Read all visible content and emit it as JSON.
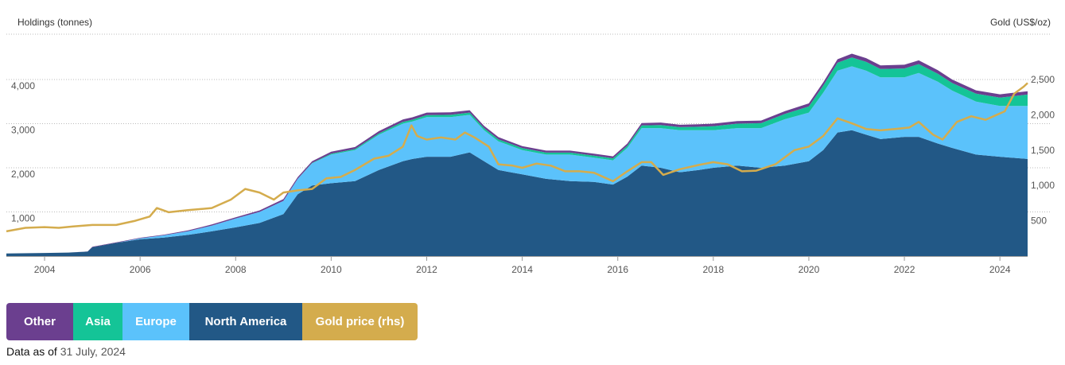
{
  "header": {
    "left_axis_title": "Holdings (tonnes)",
    "right_axis_title": "Gold (US$/oz)"
  },
  "legend": [
    {
      "label": "Other",
      "color": "#6b3f8f"
    },
    {
      "label": "Asia",
      "color": "#14c497"
    },
    {
      "label": "Europe",
      "color": "#5bc2fb"
    },
    {
      "label": "North America",
      "color": "#225886"
    },
    {
      "label": "Gold price (rhs)",
      "color": "#d4ac4d"
    }
  ],
  "footer": {
    "prefix": "Data as of",
    "date": "31 July, 2024"
  },
  "chart_data": {
    "type": "area",
    "x_ticks": [
      "2004",
      "2006",
      "2008",
      "2010",
      "2012",
      "2014",
      "2016",
      "2018",
      "2020",
      "2022",
      "2024"
    ],
    "y_left_ticks": [
      "1,000",
      "2,000",
      "3,000",
      "4,000"
    ],
    "y_right_ticks": [
      "500",
      "1,000",
      "1,500",
      "2,000",
      "2,500"
    ],
    "xlim": [
      2003.2,
      2024.58
    ],
    "ylim_left": [
      0,
      4000
    ],
    "ylim_right": [
      0,
      2500
    ],
    "x": [
      2003.2,
      2004.0,
      2004.5,
      2004.9,
      2005.0,
      2005.5,
      2006.0,
      2006.5,
      2007.0,
      2007.5,
      2008.0,
      2008.5,
      2009.0,
      2009.3,
      2009.6,
      2010.0,
      2010.5,
      2011.0,
      2011.5,
      2011.7,
      2012.0,
      2012.5,
      2012.9,
      2013.2,
      2013.5,
      2014.0,
      2014.5,
      2015.0,
      2015.5,
      2015.9,
      2016.2,
      2016.5,
      2016.9,
      2017.3,
      2017.7,
      2018.0,
      2018.5,
      2019.0,
      2019.5,
      2020.0,
      2020.3,
      2020.6,
      2020.9,
      2021.2,
      2021.5,
      2022.0,
      2022.3,
      2022.7,
      2023.0,
      2023.5,
      2024.0,
      2024.58
    ],
    "series": [
      {
        "name": "North America",
        "color": "#225886",
        "values": [
          60,
          70,
          80,
          100,
          200,
          300,
          380,
          420,
          480,
          560,
          650,
          750,
          950,
          1400,
          1600,
          1650,
          1700,
          1950,
          2150,
          2200,
          2250,
          2250,
          2350,
          2150,
          1950,
          1850,
          1750,
          1700,
          1680,
          1620,
          1800,
          2050,
          2000,
          1900,
          1950,
          2000,
          2050,
          2000,
          2050,
          2150,
          2400,
          2800,
          2850,
          2750,
          2650,
          2700,
          2700,
          2550,
          2450,
          2300,
          2250,
          2200
        ]
      },
      {
        "name": "Europe",
        "color": "#5bc2fb",
        "values": [
          0,
          0,
          0,
          0,
          0,
          0,
          20,
          50,
          80,
          130,
          200,
          250,
          300,
          350,
          500,
          650,
          700,
          800,
          850,
          850,
          900,
          900,
          850,
          700,
          650,
          550,
          550,
          600,
          550,
          550,
          650,
          850,
          900,
          950,
          900,
          850,
          850,
          900,
          1050,
          1100,
          1300,
          1400,
          1450,
          1450,
          1400,
          1350,
          1450,
          1400,
          1300,
          1200,
          1150,
          1200
        ]
      },
      {
        "name": "Asia",
        "color": "#14c497",
        "values": [
          0,
          0,
          0,
          0,
          0,
          0,
          0,
          0,
          0,
          0,
          0,
          0,
          0,
          0,
          10,
          20,
          25,
          30,
          40,
          40,
          45,
          50,
          50,
          50,
          45,
          45,
          45,
          45,
          45,
          45,
          50,
          60,
          70,
          70,
          80,
          90,
          100,
          110,
          120,
          140,
          160,
          180,
          200,
          200,
          190,
          200,
          200,
          180,
          170,
          180,
          190,
          260
        ]
      },
      {
        "name": "Other",
        "color": "#6b3f8f",
        "values": [
          0,
          0,
          0,
          5,
          10,
          10,
          15,
          15,
          20,
          25,
          30,
          35,
          40,
          40,
          40,
          45,
          45,
          50,
          55,
          55,
          55,
          55,
          55,
          50,
          50,
          45,
          45,
          45,
          45,
          45,
          50,
          55,
          55,
          55,
          55,
          60,
          60,
          60,
          65,
          70,
          75,
          80,
          85,
          85,
          80,
          85,
          85,
          80,
          80,
          75,
          75,
          75
        ]
      }
    ],
    "gold_price": {
      "name": "Gold price (rhs)",
      "color": "#d4ac4d",
      "x": [
        2003.2,
        2003.6,
        2004.0,
        2004.3,
        2004.6,
        2005.0,
        2005.5,
        2005.9,
        2006.2,
        2006.35,
        2006.6,
        2007.0,
        2007.5,
        2007.9,
        2008.2,
        2008.5,
        2008.8,
        2009.0,
        2009.3,
        2009.6,
        2009.9,
        2010.2,
        2010.5,
        2010.9,
        2011.2,
        2011.5,
        2011.68,
        2011.8,
        2012.0,
        2012.3,
        2012.6,
        2012.8,
        2013.0,
        2013.3,
        2013.5,
        2013.8,
        2014.0,
        2014.3,
        2014.6,
        2014.9,
        2015.2,
        2015.5,
        2015.9,
        2016.2,
        2016.5,
        2016.7,
        2016.95,
        2017.3,
        2017.7,
        2018.0,
        2018.3,
        2018.6,
        2018.9,
        2019.3,
        2019.7,
        2020.0,
        2020.3,
        2020.6,
        2020.9,
        2021.2,
        2021.5,
        2021.8,
        2022.1,
        2022.3,
        2022.6,
        2022.8,
        2023.1,
        2023.4,
        2023.7,
        2023.9,
        2024.1,
        2024.3,
        2024.5,
        2024.58
      ],
      "values": [
        350,
        400,
        410,
        400,
        420,
        440,
        440,
        500,
        560,
        680,
        620,
        650,
        680,
        800,
        950,
        900,
        800,
        900,
        930,
        950,
        1100,
        1120,
        1220,
        1380,
        1420,
        1550,
        1850,
        1700,
        1650,
        1680,
        1650,
        1750,
        1680,
        1550,
        1300,
        1280,
        1250,
        1310,
        1280,
        1200,
        1200,
        1180,
        1060,
        1200,
        1330,
        1330,
        1150,
        1230,
        1290,
        1330,
        1300,
        1200,
        1210,
        1300,
        1500,
        1550,
        1700,
        1950,
        1880,
        1800,
        1780,
        1800,
        1820,
        1900,
        1720,
        1650,
        1900,
        1980,
        1930,
        1990,
        2050,
        2300,
        2400,
        2450
      ]
    }
  }
}
